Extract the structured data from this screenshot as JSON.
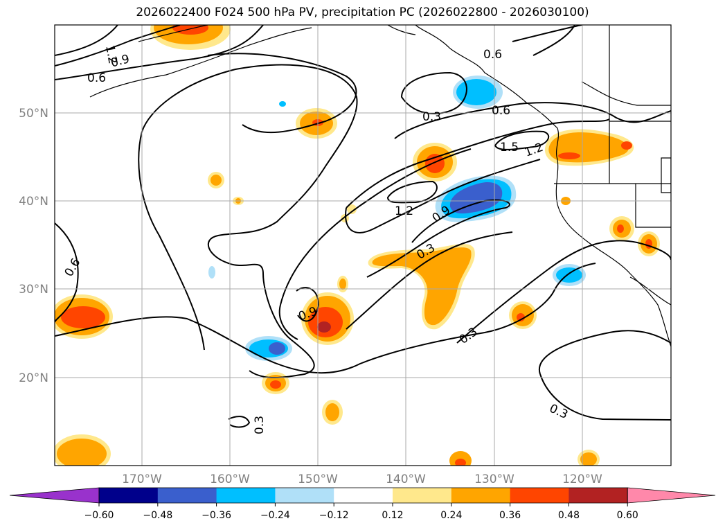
{
  "title": "2026022400 F024 500 hPa PV, precipitation PC (2026022800 - 2026030100)",
  "latitude_labels": [
    "50°N",
    "40°N",
    "30°N",
    "20°N"
  ],
  "longitude_labels": [
    "170°W",
    "160°W",
    "150°W",
    "140°W",
    "130°W",
    "120°W"
  ],
  "contour_labels": [
    "1.2",
    "0.9",
    "0.6",
    "0.6",
    "0.3",
    "0.6",
    "1.5",
    "1.2",
    "1.2",
    "0.9",
    "0.3",
    "0.9",
    "0.3",
    "0.3",
    "0.6",
    "0.3"
  ],
  "colorbar": {
    "tick_labels": [
      "−0.60",
      "−0.48",
      "−0.36",
      "−0.24",
      "−0.12",
      "0.12",
      "0.24",
      "0.36",
      "0.48",
      "0.60"
    ],
    "colors": [
      "#9932cc",
      "#00008b",
      "#3a5fcd",
      "#00bfff",
      "#b0e0f8",
      "#ffffff",
      "#ffe88c",
      "#ffa500",
      "#ff4500",
      "#b22222",
      "#ff88aa"
    ]
  },
  "map": {
    "projection": "lat-lon",
    "lon_range": [
      -180,
      -110
    ],
    "lat_range": [
      10,
      60
    ],
    "field_contours": "500 hPa PV",
    "field_shaded": "precipitation PC"
  }
}
